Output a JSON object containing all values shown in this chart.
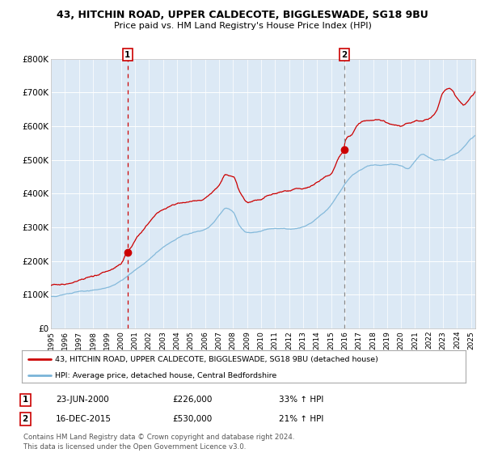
{
  "title": "43, HITCHIN ROAD, UPPER CALDECOTE, BIGGLESWADE, SG18 9BU",
  "subtitle": "Price paid vs. HM Land Registry's House Price Index (HPI)",
  "legend_line1": "43, HITCHIN ROAD, UPPER CALDECOTE, BIGGLESWADE, SG18 9BU (detached house)",
  "legend_line2": "HPI: Average price, detached house, Central Bedfordshire",
  "annotation1_date": "23-JUN-2000",
  "annotation1_price": "£226,000",
  "annotation1_hpi": "33% ↑ HPI",
  "annotation2_date": "16-DEC-2015",
  "annotation2_price": "£530,000",
  "annotation2_hpi": "21% ↑ HPI",
  "footer": "Contains HM Land Registry data © Crown copyright and database right 2024.\nThis data is licensed under the Open Government Licence v3.0.",
  "plot_bg_color": "#dce9f5",
  "outer_bg_color": "#ffffff",
  "red_line_color": "#cc0000",
  "blue_line_color": "#7ab4d8",
  "grid_color": "#ffffff",
  "vline1_color": "#cc0000",
  "vline2_color": "#888888",
  "ylim": [
    0,
    800000
  ],
  "yticks": [
    0,
    100000,
    200000,
    300000,
    400000,
    500000,
    600000,
    700000,
    800000
  ],
  "ytick_labels": [
    "£0",
    "£100K",
    "£200K",
    "£300K",
    "£400K",
    "£500K",
    "£600K",
    "£700K",
    "£800K"
  ],
  "sale1_x": 2000.47,
  "sale1_y": 226000,
  "sale2_x": 2015.96,
  "sale2_y": 530000,
  "xmin": 1995.0,
  "xmax": 2025.3,
  "red_key_x": [
    1995.0,
    1996.0,
    1997.0,
    1998.0,
    1999.0,
    2000.0,
    2000.5,
    2001.0,
    2001.5,
    2002.0,
    2002.5,
    2003.0,
    2003.5,
    2004.0,
    2004.5,
    2005.0,
    2005.5,
    2006.0,
    2006.5,
    2007.0,
    2007.5,
    2008.0,
    2008.5,
    2009.0,
    2009.5,
    2010.0,
    2010.5,
    2011.0,
    2011.5,
    2012.0,
    2012.5,
    2013.0,
    2013.5,
    2014.0,
    2014.5,
    2015.0,
    2015.5,
    2015.96,
    2016.0,
    2016.5,
    2017.0,
    2017.5,
    2018.0,
    2018.5,
    2019.0,
    2019.5,
    2020.0,
    2020.5,
    2021.0,
    2021.5,
    2022.0,
    2022.5,
    2023.0,
    2023.5,
    2024.0,
    2024.5,
    2025.0,
    2025.3
  ],
  "red_key_y": [
    128000,
    132000,
    140000,
    150000,
    163000,
    185000,
    226000,
    255000,
    280000,
    305000,
    330000,
    345000,
    355000,
    363000,
    368000,
    372000,
    378000,
    385000,
    400000,
    420000,
    455000,
    450000,
    400000,
    370000,
    375000,
    380000,
    390000,
    395000,
    400000,
    400000,
    405000,
    408000,
    412000,
    425000,
    438000,
    450000,
    495000,
    530000,
    545000,
    570000,
    600000,
    610000,
    612000,
    608000,
    600000,
    595000,
    590000,
    598000,
    610000,
    615000,
    620000,
    640000,
    695000,
    710000,
    680000,
    660000,
    685000,
    700000
  ],
  "hpi_key_x": [
    1995.0,
    1996.0,
    1997.0,
    1998.0,
    1999.0,
    2000.0,
    2000.5,
    2001.0,
    2001.5,
    2002.0,
    2002.5,
    2003.0,
    2003.5,
    2004.0,
    2004.5,
    2005.0,
    2005.5,
    2006.0,
    2006.5,
    2007.0,
    2007.5,
    2008.0,
    2008.5,
    2009.0,
    2009.5,
    2010.0,
    2010.5,
    2011.0,
    2011.5,
    2012.0,
    2012.5,
    2013.0,
    2013.5,
    2014.0,
    2014.5,
    2015.0,
    2015.5,
    2016.0,
    2016.5,
    2017.0,
    2017.5,
    2018.0,
    2018.5,
    2019.0,
    2019.5,
    2020.0,
    2020.5,
    2021.0,
    2021.5,
    2022.0,
    2022.5,
    2023.0,
    2023.5,
    2024.0,
    2024.5,
    2025.0,
    2025.3
  ],
  "hpi_key_y": [
    95000,
    100000,
    108000,
    115000,
    122000,
    140000,
    155000,
    170000,
    185000,
    200000,
    220000,
    238000,
    252000,
    265000,
    275000,
    280000,
    285000,
    290000,
    305000,
    330000,
    350000,
    340000,
    295000,
    278000,
    278000,
    282000,
    288000,
    290000,
    290000,
    288000,
    290000,
    295000,
    305000,
    322000,
    340000,
    360000,
    390000,
    420000,
    445000,
    460000,
    470000,
    475000,
    475000,
    478000,
    480000,
    475000,
    470000,
    490000,
    510000,
    500000,
    490000,
    490000,
    500000,
    510000,
    530000,
    555000,
    565000
  ]
}
